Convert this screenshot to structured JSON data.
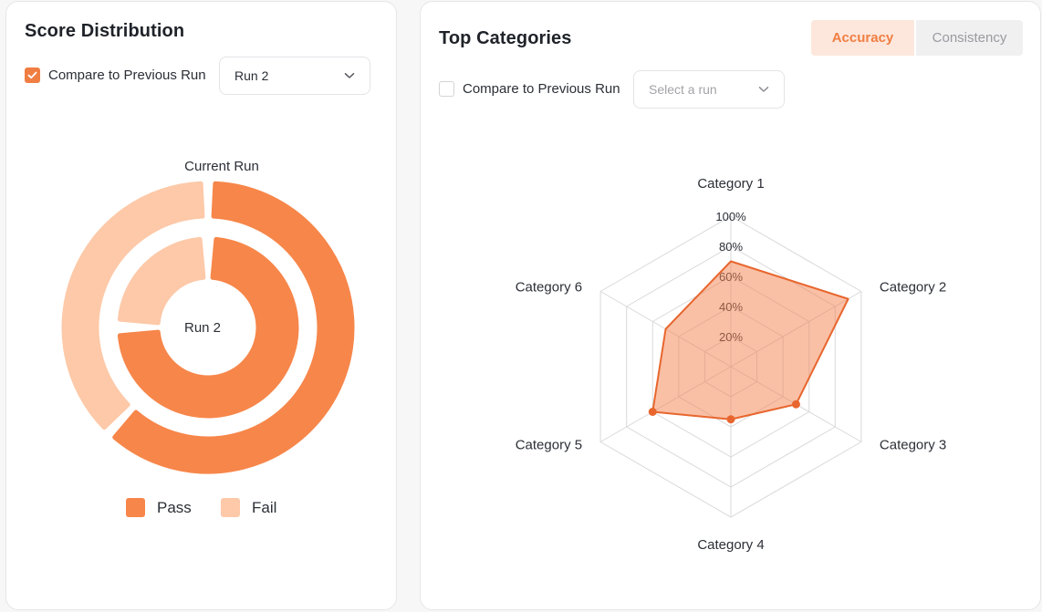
{
  "score_panel": {
    "title": "Score Distribution",
    "compare_label": "Compare to Previous Run",
    "compare_checked": true,
    "run_select_value": "Run 2",
    "outer_label": "Current Run",
    "inner_label": "Run 2",
    "legend": [
      {
        "label": "Pass",
        "color": "#f7864a"
      },
      {
        "label": "Fail",
        "color": "#fdc9a8"
      }
    ]
  },
  "top_panel": {
    "title": "Top Categories",
    "tabs": [
      {
        "label": "Accuracy",
        "active": true
      },
      {
        "label": "Consistency",
        "active": false
      }
    ],
    "compare_label": "Compare to Previous Run",
    "compare_checked": false,
    "run_select_placeholder": "Select a run"
  },
  "chart_data": [
    {
      "type": "pie",
      "variant": "nested-donut",
      "rings": [
        {
          "name": "Current Run",
          "slices": [
            {
              "label": "Pass",
              "value": 62
            },
            {
              "label": "Fail",
              "value": 38
            }
          ]
        },
        {
          "name": "Run 2",
          "slices": [
            {
              "label": "Pass",
              "value": 75
            },
            {
              "label": "Fail",
              "value": 25
            }
          ]
        }
      ],
      "colors": {
        "Pass": "#f7864a",
        "Fail": "#fdc9a8"
      },
      "legend_placement": "bottom"
    },
    {
      "type": "radar",
      "categories": [
        "Category 1",
        "Category 2",
        "Category 3",
        "Category 4",
        "Category 5",
        "Category 6"
      ],
      "values": [
        70,
        90,
        50,
        35,
        60,
        50
      ],
      "tick_labels": [
        "20%",
        "40%",
        "60%",
        "80%",
        "100%"
      ],
      "rlim": [
        0,
        100
      ],
      "grid": true,
      "color": "#e8662e"
    }
  ]
}
